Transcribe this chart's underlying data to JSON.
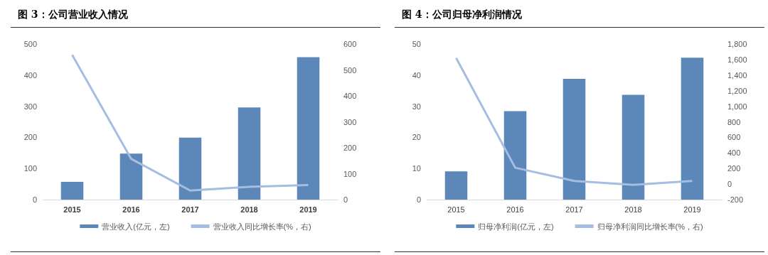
{
  "chart_data": [
    {
      "type": "bar",
      "title": "图 3：公司营业收入情况",
      "categories": [
        "2015",
        "2016",
        "2017",
        "2018",
        "2019"
      ],
      "series": [
        {
          "name": "营业收入(亿元，左)",
          "color": "#5b87b9",
          "values": [
            57,
            148,
            199,
            296,
            458
          ]
        },
        {
          "name": "营业收入同比增长率(%，右)",
          "type": "line",
          "axis": "y2",
          "color": "#a5bde0",
          "values": [
            558,
            157,
            35,
            49,
            56
          ]
        }
      ],
      "ylim": [
        0,
        500
      ],
      "yticks": [
        0,
        100,
        200,
        300,
        400,
        500
      ],
      "y2lim": [
        0,
        600
      ],
      "y2ticks": [
        0,
        100,
        200,
        300,
        400,
        500,
        600
      ],
      "grid": false,
      "legend": "bottom",
      "marker": "none",
      "line_style": "solid"
    },
    {
      "type": "bar",
      "title": "图 4：公司归母净利润情况",
      "categories": [
        "2015",
        "2016",
        "2017",
        "2018",
        "2019"
      ],
      "series": [
        {
          "name": "归母净利润(亿元，左)",
          "color": "#5b87b9",
          "values": [
            9.1,
            28.4,
            38.8,
            33.7,
            45.6
          ]
        },
        {
          "name": "归母净利润同比增长率(%，右)",
          "type": "line",
          "axis": "y2",
          "color": "#a5bde0",
          "values": [
            1620,
            210,
            40,
            -10,
            40
          ]
        }
      ],
      "ylim": [
        0,
        50
      ],
      "yticks": [
        0,
        10,
        20,
        30,
        40,
        50
      ],
      "y2lim": [
        -200,
        1800
      ],
      "y2ticks": [
        -200,
        0,
        200,
        400,
        600,
        800,
        {
          "value": 1000,
          "label": "1,000"
        },
        {
          "value": 1200,
          "label": "1,200"
        },
        {
          "value": 1400,
          "label": "1,400"
        },
        {
          "value": 1600,
          "label": "1,600"
        },
        {
          "value": 1800,
          "label": "1,800"
        }
      ],
      "grid": false,
      "legend": "bottom",
      "marker": "none",
      "line_style": "solid"
    }
  ]
}
